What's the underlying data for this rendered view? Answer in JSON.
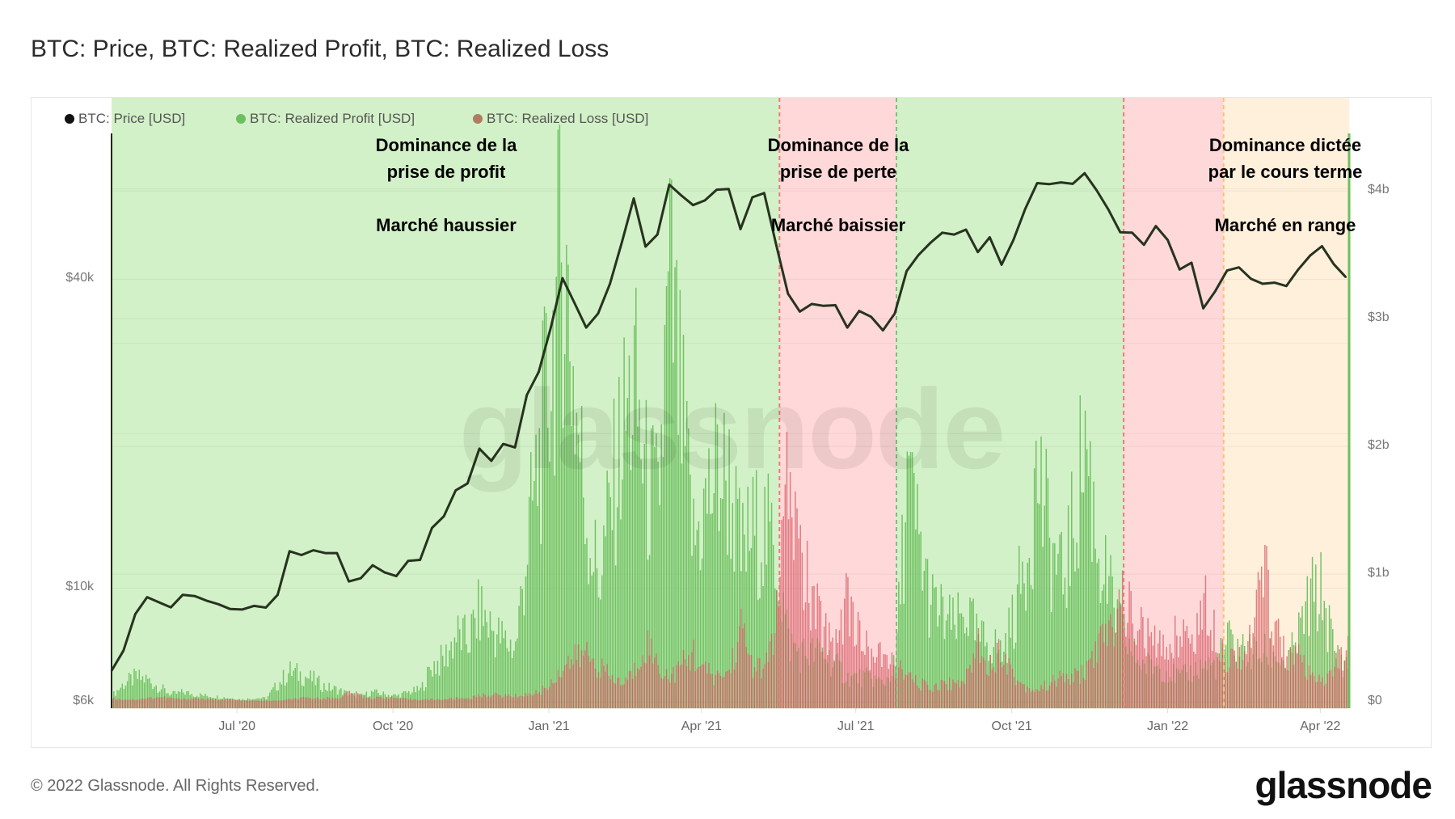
{
  "title": "BTC: Price, BTC: Realized Profit, BTC: Realized Loss",
  "footer": "© 2022 Glassnode. All Rights Reserved.",
  "logo": "glassnode",
  "watermark": "glassnode",
  "legend": [
    {
      "label": "BTC: Price [USD]",
      "color": "#111111"
    },
    {
      "label": "BTC: Realized Profit [USD]",
      "color": "#6cbf5e"
    },
    {
      "label": "BTC: Realized Loss [USD]",
      "color": "#b07b5e"
    }
  ],
  "annotations": [
    {
      "lines": [
        "Dominance de la",
        "prise de profit"
      ],
      "sub": "Marché haussier"
    },
    {
      "lines": [
        "Dominance de la",
        "prise de perte"
      ],
      "sub": "Marché baissier"
    },
    {
      "lines": [
        "Dominance dictée",
        "par le cours terme"
      ],
      "sub": "Marché en range"
    }
  ],
  "chart_data": {
    "type": "line+bar",
    "title": "BTC: Price, BTC: Realized Profit, BTC: Realized Loss",
    "x_range": [
      "2020-04-18",
      "2022-04-18"
    ],
    "x_ticks": [
      {
        "date": "2020-07-01",
        "label": "Jul '20"
      },
      {
        "date": "2020-10-01",
        "label": "Oct '20"
      },
      {
        "date": "2021-01-01",
        "label": "Jan '21"
      },
      {
        "date": "2021-04-01",
        "label": "Apr '21"
      },
      {
        "date": "2021-07-01",
        "label": "Jul '21"
      },
      {
        "date": "2021-10-01",
        "label": "Oct '21"
      },
      {
        "date": "2022-01-01",
        "label": "Jan '22"
      },
      {
        "date": "2022-04-01",
        "label": "Apr '22"
      }
    ],
    "y_left": {
      "scale": "log",
      "range": [
        5830,
        77000
      ],
      "ticks": [
        {
          "value": 6000,
          "label": "$6k"
        },
        {
          "value": 10000,
          "label": "$10k"
        },
        {
          "value": 40000,
          "label": "$40k"
        }
      ]
    },
    "y_right": {
      "scale": "linear",
      "unit": "USD billions",
      "range": [
        -0.05,
        4.45
      ],
      "ticks": [
        {
          "value": 0,
          "label": "$0"
        },
        {
          "value": 1,
          "label": "$1b"
        },
        {
          "value": 2,
          "label": "$2b"
        },
        {
          "value": 3,
          "label": "$3b"
        },
        {
          "value": 4,
          "label": "$4b"
        }
      ]
    },
    "grid": true,
    "legend_placement": "top-left",
    "regions": [
      {
        "from": "2020-04-18",
        "to": "2021-05-17",
        "color": "#d3f1c8",
        "line": "#d3f1c8"
      },
      {
        "from": "2021-05-17",
        "to": "2021-07-25",
        "color": "#ffd9d9",
        "line": "#ef7a7a"
      },
      {
        "from": "2021-07-25",
        "to": "2021-12-06",
        "color": "#d3f1c8",
        "line": "#7cbf7c"
      },
      {
        "from": "2021-12-06",
        "to": "2022-02-03",
        "color": "#ffd9d9",
        "line": "#ef7a7a"
      },
      {
        "from": "2022-02-03",
        "to": "2022-04-18",
        "color": "#fff0dc",
        "line": "#ffc070"
      }
    ],
    "dates": [
      "2020-04-18",
      "2020-04-25",
      "2020-05-02",
      "2020-05-09",
      "2020-05-16",
      "2020-05-23",
      "2020-05-30",
      "2020-06-06",
      "2020-06-13",
      "2020-06-20",
      "2020-06-27",
      "2020-07-04",
      "2020-07-11",
      "2020-07-18",
      "2020-07-25",
      "2020-08-01",
      "2020-08-08",
      "2020-08-15",
      "2020-08-22",
      "2020-08-29",
      "2020-09-05",
      "2020-09-12",
      "2020-09-19",
      "2020-09-26",
      "2020-10-03",
      "2020-10-10",
      "2020-10-17",
      "2020-10-24",
      "2020-10-31",
      "2020-11-07",
      "2020-11-14",
      "2020-11-21",
      "2020-11-28",
      "2020-12-05",
      "2020-12-12",
      "2020-12-19",
      "2020-12-26",
      "2021-01-02",
      "2021-01-09",
      "2021-01-16",
      "2021-01-23",
      "2021-01-30",
      "2021-02-06",
      "2021-02-13",
      "2021-02-20",
      "2021-02-27",
      "2021-03-06",
      "2021-03-13",
      "2021-03-20",
      "2021-03-27",
      "2021-04-03",
      "2021-04-10",
      "2021-04-17",
      "2021-04-24",
      "2021-05-01",
      "2021-05-08",
      "2021-05-15",
      "2021-05-22",
      "2021-05-29",
      "2021-06-05",
      "2021-06-12",
      "2021-06-19",
      "2021-06-26",
      "2021-07-03",
      "2021-07-10",
      "2021-07-17",
      "2021-07-24",
      "2021-07-31",
      "2021-08-07",
      "2021-08-14",
      "2021-08-21",
      "2021-08-28",
      "2021-09-04",
      "2021-09-11",
      "2021-09-18",
      "2021-09-25",
      "2021-10-02",
      "2021-10-09",
      "2021-10-16",
      "2021-10-23",
      "2021-10-30",
      "2021-11-06",
      "2021-11-13",
      "2021-11-20",
      "2021-11-27",
      "2021-12-04",
      "2021-12-11",
      "2021-12-18",
      "2021-12-25",
      "2022-01-01",
      "2022-01-08",
      "2022-01-15",
      "2022-01-22",
      "2022-01-29",
      "2022-02-05",
      "2022-02-12",
      "2022-02-19",
      "2022-02-26",
      "2022-03-05",
      "2022-03-12",
      "2022-03-19",
      "2022-03-26",
      "2022-04-02",
      "2022-04-09",
      "2022-04-16"
    ],
    "series": [
      {
        "name": "BTC: Price [USD]",
        "axis": "left",
        "kind": "line",
        "color": "#27331f",
        "values": [
          6900,
          7550,
          8900,
          9600,
          9380,
          9170,
          9700,
          9650,
          9450,
          9300,
          9100,
          9080,
          9230,
          9160,
          9700,
          11800,
          11600,
          11850,
          11700,
          11700,
          10300,
          10450,
          11080,
          10730,
          10550,
          11300,
          11350,
          13100,
          13800,
          15500,
          16000,
          18700,
          17700,
          19100,
          18800,
          23800,
          26400,
          32100,
          40200,
          36000,
          32200,
          34300,
          39200,
          47200,
          57500,
          46300,
          48900,
          61200,
          58300,
          55800,
          57000,
          59800,
          60000,
          50100,
          57800,
          58900,
          46800,
          37500,
          34600,
          35800,
          35500,
          35600,
          32200,
          34700,
          33800,
          31800,
          34300,
          41500,
          44600,
          47100,
          49300,
          48900,
          50000,
          45200,
          48300,
          42700,
          47700,
          54900,
          61600,
          61300,
          61800,
          61400,
          64400,
          59700,
          54700,
          49400,
          49300,
          46700,
          50800,
          47700,
          41800,
          43100,
          35100,
          37900,
          41600,
          42200,
          40100,
          39200,
          39400,
          38800,
          41800,
          44500,
          46400,
          42800,
          40400
        ]
      },
      {
        "name": "BTC: Realized Profit [USD]",
        "axis": "right",
        "kind": "bar",
        "color": "#6cbf5e",
        "values": [
          0.05,
          0.15,
          0.2,
          0.18,
          0.12,
          0.06,
          0.08,
          0.06,
          0.05,
          0.04,
          0.03,
          0.02,
          0.03,
          0.03,
          0.15,
          0.25,
          0.22,
          0.18,
          0.12,
          0.1,
          0.06,
          0.05,
          0.08,
          0.06,
          0.05,
          0.08,
          0.1,
          0.3,
          0.35,
          0.55,
          0.5,
          0.75,
          0.6,
          0.5,
          0.45,
          1.3,
          2.0,
          2.8,
          3.8,
          2.5,
          1.5,
          1.0,
          1.6,
          2.2,
          2.6,
          1.8,
          1.6,
          3.4,
          2.3,
          1.3,
          1.6,
          1.9,
          1.8,
          1.2,
          1.4,
          1.4,
          1.2,
          0.5,
          0.4,
          0.4,
          0.4,
          0.3,
          0.2,
          0.2,
          0.2,
          0.15,
          0.3,
          1.8,
          1.3,
          0.8,
          0.7,
          0.6,
          0.75,
          0.5,
          0.5,
          0.4,
          0.7,
          1.2,
          1.9,
          1.3,
          1.0,
          1.4,
          2.2,
          1.3,
          0.9,
          0.6,
          0.4,
          0.3,
          0.3,
          0.25,
          0.2,
          0.25,
          0.3,
          0.3,
          0.5,
          0.45,
          0.4,
          0.4,
          0.4,
          0.3,
          0.55,
          0.85,
          0.9,
          0.4,
          0.3
        ]
      },
      {
        "name": "BTC: Realized Loss [USD]",
        "axis": "right",
        "kind": "bar",
        "color": "#b07b5e",
        "values": [
          0.03,
          0.02,
          0.02,
          0.03,
          0.04,
          0.03,
          0.02,
          0.03,
          0.02,
          0.02,
          0.02,
          0.01,
          0.01,
          0.01,
          0.01,
          0.02,
          0.03,
          0.03,
          0.03,
          0.03,
          0.08,
          0.05,
          0.03,
          0.04,
          0.03,
          0.02,
          0.02,
          0.02,
          0.02,
          0.03,
          0.03,
          0.05,
          0.06,
          0.05,
          0.05,
          0.06,
          0.08,
          0.15,
          0.3,
          0.35,
          0.4,
          0.3,
          0.2,
          0.15,
          0.25,
          0.5,
          0.3,
          0.2,
          0.3,
          0.4,
          0.25,
          0.2,
          0.25,
          0.6,
          0.3,
          0.25,
          0.7,
          1.8,
          1.2,
          0.8,
          0.6,
          0.5,
          0.9,
          0.5,
          0.4,
          0.35,
          0.3,
          0.2,
          0.15,
          0.12,
          0.15,
          0.15,
          0.2,
          0.5,
          0.3,
          0.45,
          0.2,
          0.12,
          0.1,
          0.15,
          0.2,
          0.2,
          0.25,
          0.45,
          0.55,
          0.85,
          0.7,
          0.55,
          0.45,
          0.45,
          0.6,
          0.5,
          0.8,
          0.6,
          0.35,
          0.4,
          0.5,
          1.1,
          0.6,
          0.4,
          0.35,
          0.2,
          0.15,
          0.3,
          0.4
        ]
      }
    ]
  }
}
